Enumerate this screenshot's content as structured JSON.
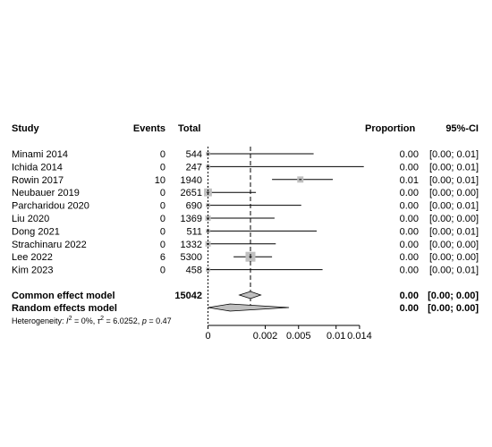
{
  "chart_data": {
    "type": "forest",
    "headers": {
      "study": "Study",
      "events": "Events",
      "total": "Total",
      "proportion": "Proportion",
      "ci": "95%-CI"
    },
    "studies": [
      {
        "name": "Minami 2014",
        "events": "0",
        "total": "544",
        "prop": "0.00",
        "ci": "[0.00; 0.01]",
        "est": 0.0,
        "lo": 0.0,
        "hi": 0.0068
      },
      {
        "name": "Ichida 2014",
        "events": "0",
        "total": "247",
        "prop": "0.00",
        "ci": "[0.00; 0.01]",
        "est": 0.0,
        "lo": 0.0,
        "hi": 0.0148
      },
      {
        "name": "Rowin 2017",
        "events": "10",
        "total": "1940",
        "prop": "0.01",
        "ci": "[0.00; 0.01]",
        "est": 0.0052,
        "lo": 0.0025,
        "hi": 0.0095
      },
      {
        "name": "Neubauer 2019",
        "events": "0",
        "total": "2651",
        "prop": "0.00",
        "ci": "[0.00; 0.00]",
        "est": 0.0,
        "lo": 0.0,
        "hi": 0.0014
      },
      {
        "name": "Parcharidou 2020",
        "events": "0",
        "total": "690",
        "prop": "0.00",
        "ci": "[0.00; 0.01]",
        "est": 0.0,
        "lo": 0.0,
        "hi": 0.0053
      },
      {
        "name": "Liu 2020",
        "events": "0",
        "total": "1369",
        "prop": "0.00",
        "ci": "[0.00; 0.00]",
        "est": 0.0,
        "lo": 0.0,
        "hi": 0.0027
      },
      {
        "name": "Dong 2021",
        "events": "0",
        "total": "511",
        "prop": "0.00",
        "ci": "[0.00; 0.01]",
        "est": 0.0,
        "lo": 0.0,
        "hi": 0.0072
      },
      {
        "name": "Strachinaru 2022",
        "events": "0",
        "total": "1332",
        "prop": "0.00",
        "ci": "[0.00; 0.00]",
        "est": 0.0,
        "lo": 0.0,
        "hi": 0.0028
      },
      {
        "name": "Lee 2022",
        "events": "6",
        "total": "5300",
        "prop": "0.00",
        "ci": "[0.00; 0.00]",
        "est": 0.0011,
        "lo": 0.0004,
        "hi": 0.0025
      },
      {
        "name": "Kim 2023",
        "events": "0",
        "total": "458",
        "prop": "0.00",
        "ci": "[0.00; 0.01]",
        "est": 0.0,
        "lo": 0.0,
        "hi": 0.008
      }
    ],
    "weights_box": [
      0.3,
      0.3,
      0.55,
      0.75,
      0.3,
      0.45,
      0.3,
      0.45,
      1.0,
      0.3
    ],
    "common": {
      "label": "Common effect model",
      "total": "15042",
      "prop": "0.00",
      "ci": "[0.00; 0.00]",
      "est": 0.0011,
      "lo": 0.0006,
      "hi": 0.0017
    },
    "random": {
      "label": "Random effects model",
      "prop": "0.00",
      "ci": "[0.00; 0.00]",
      "est": 0.0003,
      "lo": 0.0,
      "hi": 0.004
    },
    "heterogeneity": {
      "prefix": "Heterogeneity: ",
      "i2": "I",
      "i2_sup": "2",
      "i2_val": " = 0%, ",
      "tau": "τ",
      "tau_sup": "2",
      "tau_val": " = 6.0252, ",
      "p": "p",
      "p_val": " = 0.47"
    },
    "xaxis": {
      "scale": "sqrt",
      "ticks": [
        0,
        0.002,
        0.005,
        0.01,
        0.014
      ],
      "tick_labels": [
        "0",
        "0.002",
        "0.005",
        "0.01",
        "0.014"
      ],
      "range": [
        0,
        0.0148
      ]
    }
  }
}
